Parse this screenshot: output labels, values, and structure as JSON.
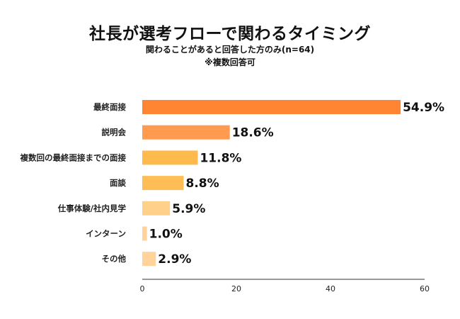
{
  "chart_data": {
    "type": "bar",
    "orientation": "horizontal",
    "title": "社長が選考フローで関わるタイミング",
    "subtitle": "関わることがあると回答した方のみ(n=64)",
    "note": "※複数回答可",
    "categories": [
      "最終面接",
      "説明会",
      "複数回の最終面接までの面接",
      "面談",
      "仕事体験/社内見学",
      "インターン",
      "その他"
    ],
    "values": [
      54.9,
      18.6,
      11.8,
      8.8,
      5.9,
      1.0,
      2.9
    ],
    "value_labels": [
      "54.9%",
      "18.6%",
      "11.8%",
      "8.8%",
      "5.9%",
      "1.0%",
      "2.9%"
    ],
    "bar_colors": [
      "#ff8533",
      "#ff9a4f",
      "#ffba4d",
      "#ffbe55",
      "#ffd08a",
      "#ffd39a",
      "#ffd39a"
    ],
    "xlim": [
      0,
      60
    ],
    "xticks": [
      "0",
      "20",
      "40",
      "60"
    ],
    "xtick_values": [
      0,
      20,
      40,
      60
    ],
    "grid": false,
    "legend": "none",
    "axis_color": "#333333"
  }
}
